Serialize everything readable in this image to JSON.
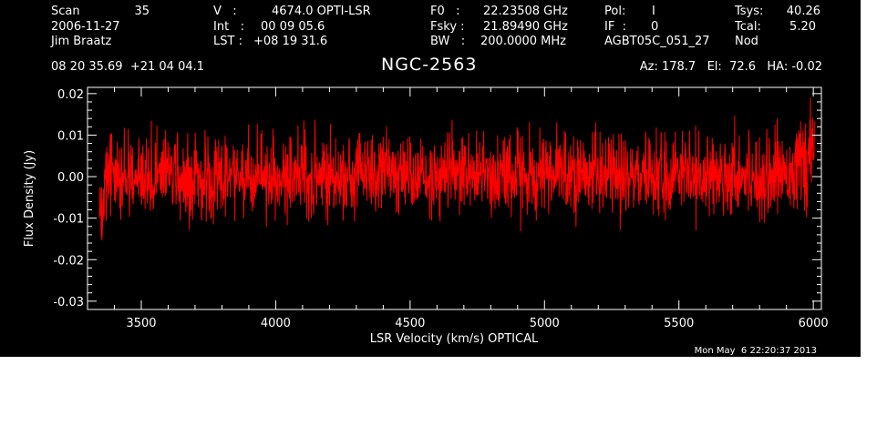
{
  "header": {
    "scan_label": "Scan",
    "scan_value": "35",
    "date": "2006-11-27",
    "observer": "Jim Braatz",
    "v_label": "V   :",
    "v_value": "4674.0 OPTI-LSR",
    "int_label": "Int   :",
    "int_value": "00 09 05.6",
    "lst_label": "LST :",
    "lst_value": "+08 19 31.6",
    "f0_label": "F0   :",
    "f0_value": "22.23508 GHz",
    "fsky_label": "Fsky :",
    "fsky_value": "21.89490 GHz",
    "bw_label": "BW   :",
    "bw_value": "200.0000 MHz",
    "pol_label": "Pol:",
    "pol_value": "I",
    "if_label": "IF  :",
    "if_value": "0",
    "project": "AGBT05C_051_27",
    "mode": "Nod",
    "tsys_label": "Tsys:",
    "tsys_value": "40.26",
    "tcal_label": "Tcal:",
    "tcal_value": "5.20",
    "coords": "08 20 35.69  +21 04 04.1",
    "source": "NGC-2563",
    "az_el_ha": "Az: 178.7   El:  72.6   HA: -0.02"
  },
  "timestamp": "Mon May  6 22:20:37 2013",
  "colors": {
    "background": "#000000",
    "axes": "#ffffff",
    "spectrum": "#ff0000"
  },
  "chart_data": {
    "type": "line",
    "title": "NGC-2563",
    "xlabel": "LSR Velocity (km/s) OPTICAL",
    "ylabel": "Flux Density (Jy)",
    "xlim": [
      3300,
      6030
    ],
    "ylim": [
      -0.032,
      0.0215
    ],
    "xticks": [
      3500,
      4000,
      4500,
      5000,
      5500,
      6000
    ],
    "xtick_labels": [
      "3500",
      "4000",
      "4500",
      "5000",
      "5500",
      "6000"
    ],
    "yticks": [
      -0.03,
      -0.02,
      -0.01,
      0.0,
      0.01,
      0.02
    ],
    "ytick_labels": [
      "-0.03",
      "-0.02",
      "-0.01",
      "0.00",
      "0.01",
      "0.02"
    ],
    "grid": false,
    "series": [
      {
        "color": "#ff0000",
        "x_start": 3345,
        "x_end": 6005,
        "x": [
          3345,
          3350,
          3355,
          3360,
          3365,
          3370,
          3380,
          3400,
          3450,
          3500,
          3550,
          3600,
          3700,
          3800,
          3900,
          4000,
          4100,
          4200,
          4300,
          4400,
          4500,
          4600,
          4700,
          4800,
          4900,
          5000,
          5100,
          5200,
          5300,
          5400,
          5500,
          5600,
          5700,
          5800,
          5900,
          5950,
          5980,
          5995,
          6000,
          6005
        ],
        "envelope_max": [
          -0.002,
          0.004,
          0.002,
          0.006,
          0.007,
          0.009,
          0.012,
          0.013,
          0.013,
          0.014,
          0.014,
          0.015,
          0.014,
          0.015,
          0.015,
          0.014,
          0.015,
          0.014,
          0.015,
          0.015,
          0.015,
          0.014,
          0.016,
          0.015,
          0.014,
          0.015,
          0.015,
          0.015,
          0.014,
          0.015,
          0.015,
          0.014,
          0.015,
          0.014,
          0.016,
          0.017,
          0.018,
          0.02,
          0.021,
          0.019
        ],
        "envelope_min": [
          -0.022,
          -0.024,
          -0.02,
          -0.017,
          -0.014,
          -0.013,
          -0.012,
          -0.012,
          -0.013,
          -0.013,
          -0.014,
          -0.014,
          -0.015,
          -0.014,
          -0.014,
          -0.014,
          -0.015,
          -0.014,
          -0.013,
          -0.014,
          -0.014,
          -0.015,
          -0.014,
          -0.013,
          -0.014,
          -0.013,
          -0.014,
          -0.014,
          -0.015,
          -0.014,
          -0.013,
          -0.014,
          -0.013,
          -0.014,
          -0.013,
          -0.012,
          -0.012,
          -0.009,
          -0.006,
          -0.004
        ],
        "noise_rms": 0.0048
      }
    ]
  }
}
